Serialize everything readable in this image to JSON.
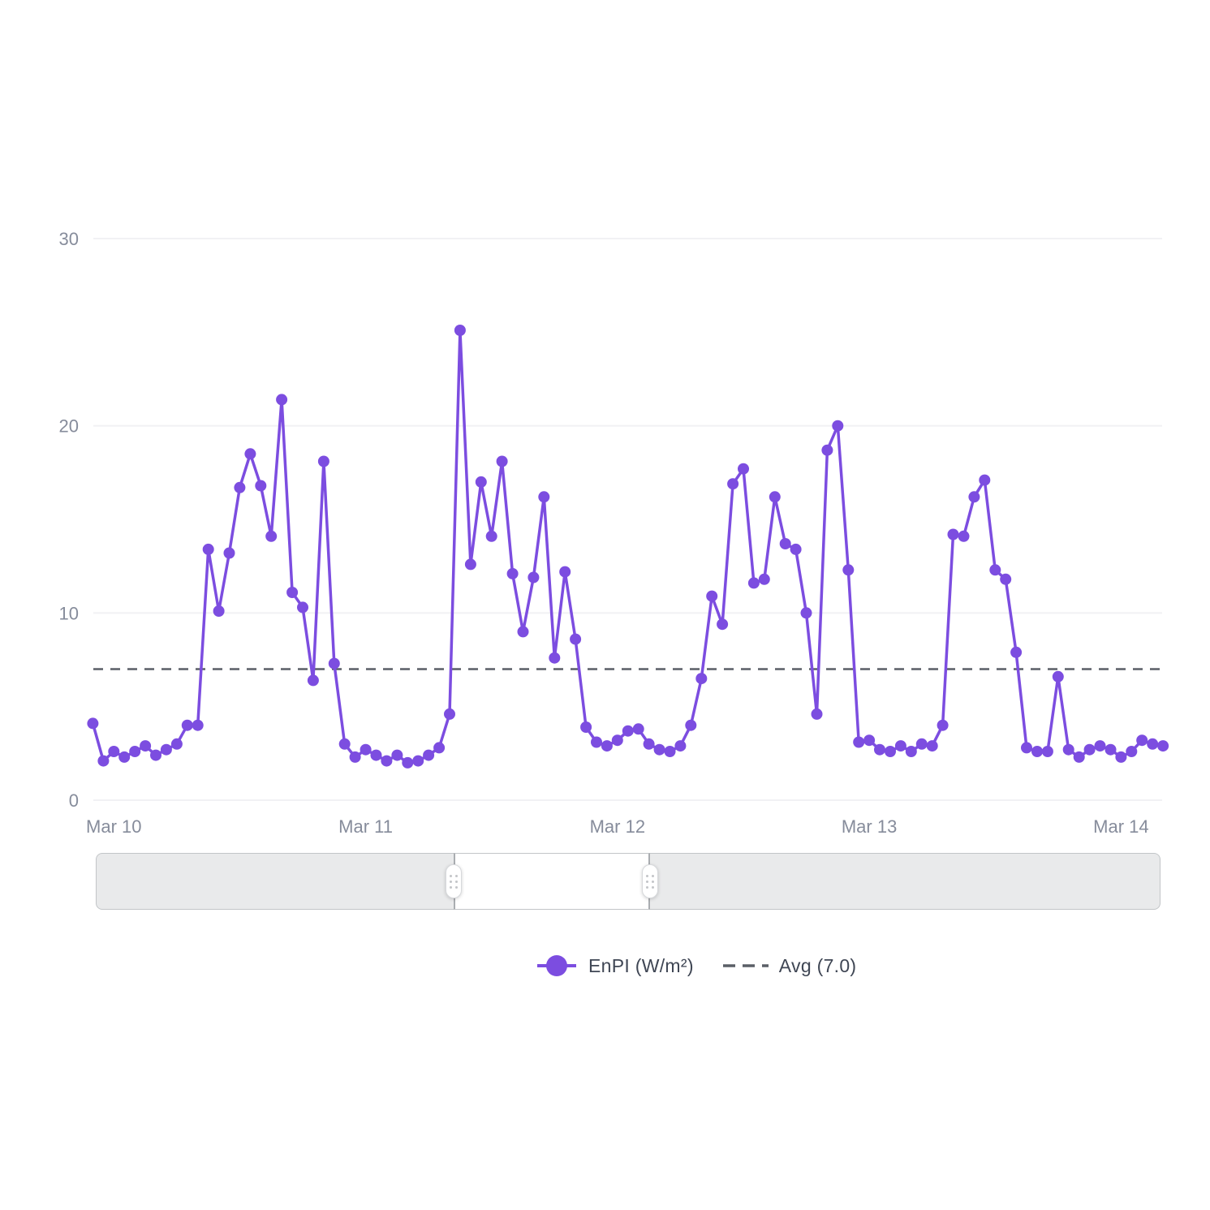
{
  "page": {
    "background": "#ffffff"
  },
  "chart_data": {
    "type": "line",
    "title": "",
    "x_axis": {
      "unit": "hours from Mar 10 00:00",
      "start_hour": -2,
      "step_hours": 1,
      "tick_hours": [
        0,
        24,
        48,
        72,
        96
      ],
      "tick_labels": [
        "Mar 10",
        "Mar 11",
        "Mar 12",
        "Mar 13",
        "Mar 14"
      ]
    },
    "y_axis": {
      "range": [
        0,
        30
      ],
      "ticks": [
        0,
        10,
        20,
        30
      ],
      "tick_labels": [
        "0",
        "10",
        "20",
        "30"
      ]
    },
    "grid": true,
    "legend_position": "bottom",
    "series": [
      {
        "name": "EnPI (W/m²)",
        "type": "line",
        "marker": "circle",
        "color": "#7c4de0",
        "values": [
          4.1,
          2.1,
          2.6,
          2.3,
          2.6,
          2.9,
          2.4,
          2.7,
          3.0,
          4.0,
          4.0,
          13.4,
          10.1,
          13.2,
          16.7,
          18.5,
          16.8,
          14.1,
          21.4,
          11.1,
          10.3,
          6.4,
          18.1,
          7.3,
          3.0,
          2.3,
          2.7,
          2.4,
          2.1,
          2.4,
          2.0,
          2.1,
          2.4,
          2.8,
          4.6,
          25.1,
          12.6,
          17.0,
          14.1,
          18.1,
          12.1,
          9.0,
          11.9,
          16.2,
          7.6,
          12.2,
          8.6,
          3.9,
          3.1,
          2.9,
          3.2,
          3.7,
          3.8,
          3.0,
          2.7,
          2.6,
          2.9,
          4.0,
          6.5,
          10.9,
          9.4,
          16.9,
          17.7,
          11.6,
          11.8,
          16.2,
          13.7,
          13.4,
          10.0,
          4.6,
          18.7,
          20.0,
          12.3,
          3.1,
          3.2,
          2.7,
          2.6,
          2.9,
          2.6,
          3.0,
          2.9,
          4.0,
          14.2,
          14.1,
          16.2,
          17.1,
          12.3,
          11.8,
          7.9,
          2.8,
          2.6,
          2.6,
          6.6,
          2.7,
          2.3,
          2.7,
          2.9,
          2.7,
          2.3,
          2.6,
          3.2,
          3.0,
          2.9
        ]
      },
      {
        "name": "Avg (7.0)",
        "type": "reference-line",
        "style": "dashed",
        "color": "#5a5f67",
        "value": 7.0
      }
    ]
  },
  "slider": {
    "window_start_pct": 33.62,
    "window_end_pct": 52.06
  }
}
